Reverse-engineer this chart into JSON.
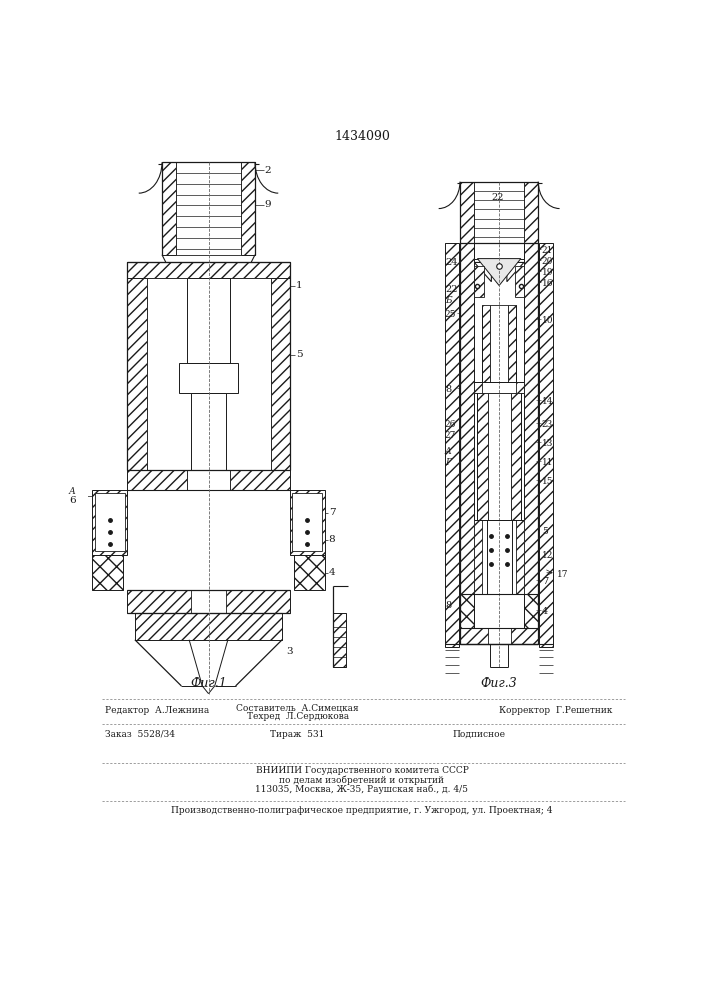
{
  "patent_number": "1434090",
  "fig1_caption": "Фиг.1",
  "fig3_caption": "Фиг.3",
  "bg_color": "#ffffff",
  "line_color": "#1a1a1a",
  "footer": {
    "row1_left": "Редактор  А.Лежнина",
    "row1_mid1": "Составитель  А.Симецкая",
    "row1_mid2": "Техред  Л.Сердюкова",
    "row1_right": "Корректор  Г.Решетник",
    "row2_left": "Заказ  5528/34",
    "row2_mid": "Тираж  531",
    "row2_right": "Подписное",
    "row3_line1": "ВНИИПИ Государственного комитета СССР",
    "row3_line2": "по делам изобретений и открытий",
    "row3_line3": "113035, Москва, Ж-35, Раушская наб., д. 4/5",
    "row4": "Производственно-полиграфическое предприятие, г. Ужгород, ул. Проектная; 4"
  }
}
